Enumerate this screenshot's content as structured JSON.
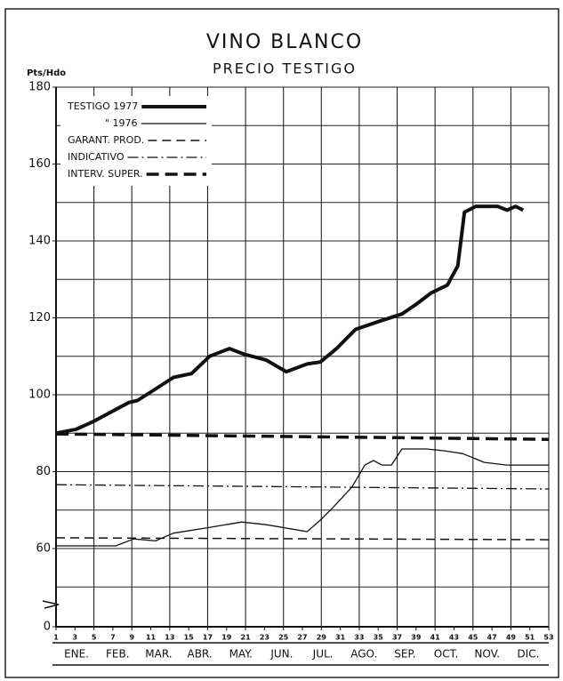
{
  "chart_data": {
    "type": "line",
    "title": "VINO BLANCO",
    "subtitle": "PRECIO TESTIGO",
    "y_label": "Pts/Hdo",
    "xlim": [
      1,
      53
    ],
    "xticks": [
      1,
      3,
      5,
      7,
      9,
      11,
      13,
      15,
      17,
      19,
      21,
      23,
      25,
      27,
      29,
      31,
      33,
      35,
      37,
      39,
      41,
      43,
      45,
      47,
      49,
      51,
      53
    ],
    "ylim": [
      0,
      180
    ],
    "yticks": [
      0,
      60,
      80,
      100,
      120,
      140,
      160,
      180
    ],
    "minor_yticks": [
      50,
      70,
      90,
      110,
      130,
      150,
      170
    ],
    "axis_break": true,
    "grid": true,
    "legend": "upper left",
    "months": [
      "ENE.",
      "FEB.",
      "MAR.",
      "ABR.",
      "MAY.",
      "JUN.",
      "JUL.",
      "AGO.",
      "SEP.",
      "OCT.",
      "NOV.",
      "DIC."
    ],
    "series": [
      {
        "name": "TESTIGO 1977",
        "color": "#111",
        "style": "thick",
        "x": [
          1,
          3.1,
          4.9,
          6.8,
          8.7,
          9.6,
          11.5,
          13.4,
          15.3,
          17.2,
          19.3,
          20.9,
          23.2,
          25.3,
          27.5,
          28.9,
          30.6,
          32.6,
          35,
          37.5,
          39,
          40.6,
          42.3,
          43.4,
          44.1,
          45.3,
          47.6,
          48.6,
          49.5,
          50.3
        ],
        "values": [
          90,
          91,
          93,
          95.5,
          98,
          98.5,
          101.5,
          104.5,
          105.5,
          110,
          112,
          110.5,
          109,
          106,
          108,
          108.5,
          112,
          117,
          119,
          121,
          123.5,
          126.5,
          128.5,
          133.5,
          147.5,
          149,
          149,
          148,
          149,
          148
        ]
      },
      {
        "name": "\" 1976",
        "color": "#111",
        "style": "thin",
        "x": [
          1,
          7.3,
          9.2,
          11.5,
          13.4,
          16.7,
          20.6,
          23.2,
          27.5,
          28.9,
          30.3,
          32.2,
          33.6,
          34.5,
          35.4,
          36.4,
          37.5,
          40.1,
          42,
          43.9,
          46.2,
          48.6,
          53
        ],
        "values": [
          60.7,
          60.7,
          62.5,
          62,
          64,
          65.3,
          66.9,
          66.2,
          64.4,
          67.4,
          70.9,
          75.9,
          81.7,
          82.9,
          81.7,
          81.7,
          85.9,
          85.9,
          85.4,
          84.7,
          82.4,
          81.7,
          81.7
        ]
      },
      {
        "name": "GARANT. PROD.",
        "color": "#111",
        "style": "dashed",
        "x": [
          1,
          53
        ],
        "values": [
          62.8,
          62.3
        ]
      },
      {
        "name": "INDICATIVO",
        "color": "#111",
        "style": "dashdot",
        "x": [
          1,
          53
        ],
        "values": [
          76.6,
          75.5
        ]
      },
      {
        "name": "INTERV. SUPER.",
        "color": "#111",
        "style": "thickdashed",
        "x": [
          1,
          53
        ],
        "values": [
          89.8,
          88.4
        ]
      }
    ]
  }
}
